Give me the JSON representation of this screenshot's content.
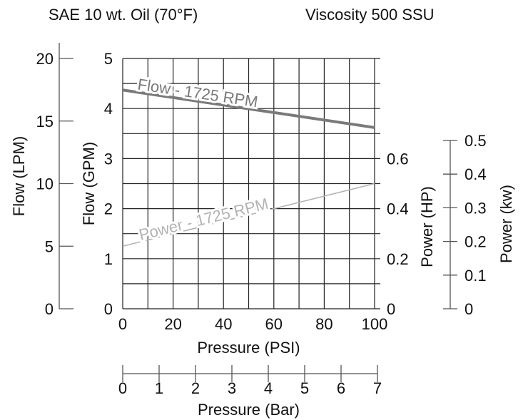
{
  "chart_data": {
    "type": "line",
    "title_left": "SAE 10 wt. Oil (70°F)",
    "title_right": "Viscosity 500 SSU",
    "xlabel": "Pressure (PSI)",
    "xlim": [
      0,
      100
    ],
    "x_ticks": [
      "0",
      "20",
      "40",
      "60",
      "80",
      "100"
    ],
    "xlabel_bar": "Pressure (Bar)",
    "bar_lim": [
      0,
      7
    ],
    "bar_ticks": [
      "0",
      "1",
      "2",
      "3",
      "4",
      "5",
      "6",
      "7"
    ],
    "ylabel_gpm": "Flow (GPM)",
    "gpm_lim": [
      0,
      5
    ],
    "gpm_ticks": [
      "0",
      "1",
      "2",
      "3",
      "4",
      "5"
    ],
    "ylabel_lpm": "Flow (LPM)",
    "lpm_lim": [
      0,
      20
    ],
    "lpm_ticks": [
      "0",
      "5",
      "10",
      "15",
      "20"
    ],
    "ylabel_hp": "Power (HP)",
    "hp_lim": [
      0,
      1.0
    ],
    "hp_ticks": [
      "0",
      "0.2",
      "0.4",
      "0.6"
    ],
    "ylabel_kw": "Power (kw)",
    "kw_lim": [
      0,
      0.5
    ],
    "kw_ticks": [
      "0",
      "0.1",
      "0.2",
      "0.3",
      "0.4",
      "0.5"
    ],
    "grid": true,
    "series": [
      {
        "name": "Flow - 1725 RPM",
        "axis": "gpm",
        "color": "#7a7a7a",
        "x": [
          0,
          100
        ],
        "y": [
          4.37,
          3.62
        ]
      },
      {
        "name": "Power - 1725 RPM",
        "axis": "hp",
        "color": "#b3b3b3",
        "x": [
          0,
          100
        ],
        "y": [
          0.25,
          0.5
        ]
      }
    ]
  }
}
